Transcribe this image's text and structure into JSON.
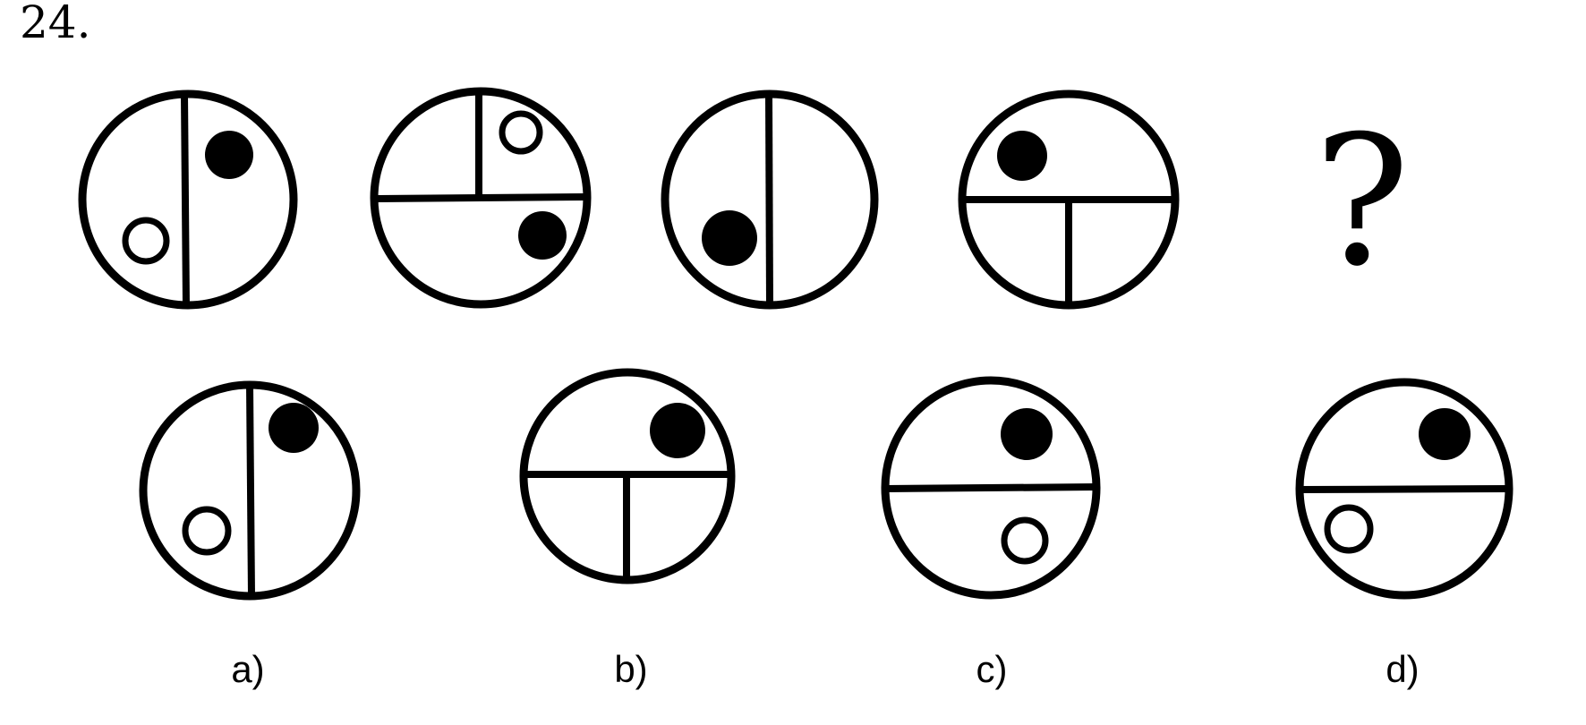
{
  "question_number": "24.",
  "missing_marker": "?",
  "sequence": [
    {
      "divider": "vertical",
      "dots": [
        "filled (right half)",
        "open (left half)"
      ]
    },
    {
      "divider": "horizontal with vertical in top half",
      "dots": [
        "open (top-right section)",
        "filled (bottom half)"
      ]
    },
    {
      "divider": "vertical",
      "dots": [
        "filled (left half)"
      ]
    },
    {
      "divider": "horizontal with vertical in bottom half",
      "dots": [
        "filled (top half)"
      ]
    }
  ],
  "options": [
    {
      "label": "a)",
      "divider": "vertical",
      "dots": [
        "filled (right half)",
        "open (left half)"
      ]
    },
    {
      "label": "b)",
      "divider": "horizontal with vertical in bottom half",
      "dots": [
        "filled (top half)"
      ]
    },
    {
      "label": "c)",
      "divider": "horizontal",
      "dots": [
        "filled (top half)",
        "open (bottom half)"
      ]
    },
    {
      "label": "d)",
      "divider": "horizontal",
      "dots": [
        "filled (top half)",
        "open (bottom half)"
      ]
    }
  ]
}
